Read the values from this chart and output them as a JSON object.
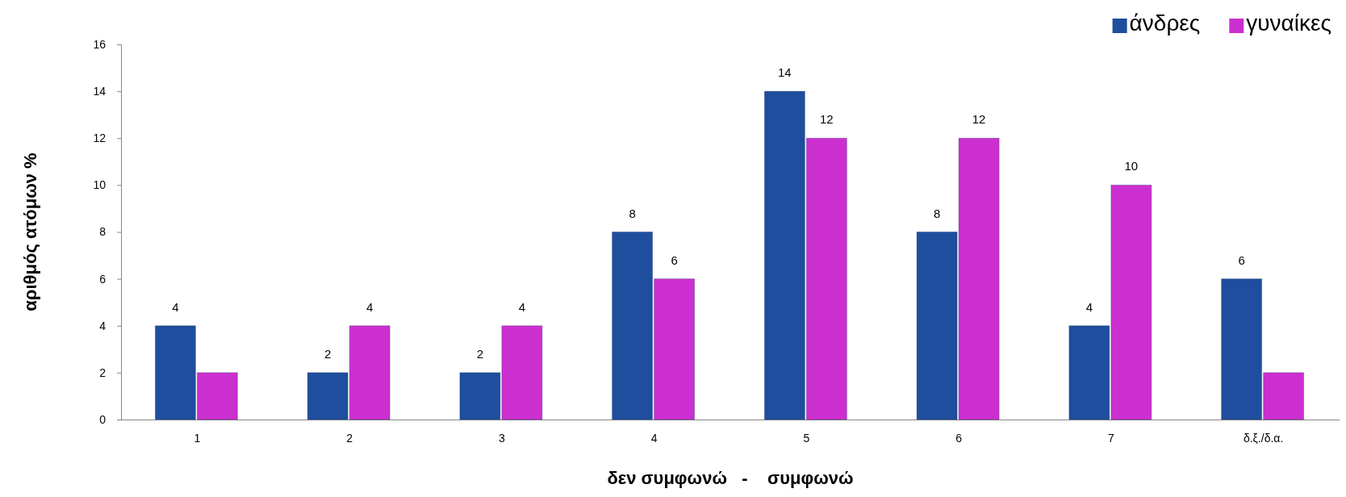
{
  "chart_data": {
    "type": "bar",
    "xlabel": "δεν συμφωνώ   -    συμφωνώ",
    "ylabel": "αριθμός ατόμων %",
    "categories": [
      "1",
      "2",
      "3",
      "4",
      "5",
      "6",
      "7",
      "δ.ξ./δ.α."
    ],
    "series": [
      {
        "name": "άνδρες",
        "color": "#1f4e9e",
        "values": [
          4,
          2,
          2,
          8,
          14,
          8,
          4,
          6
        ],
        "value_labels": [
          "4",
          "2",
          "2",
          "8",
          "14",
          "8",
          "4",
          "6"
        ]
      },
      {
        "name": "γυναίκες",
        "color": "#cc2fd0",
        "values": [
          2,
          4,
          4,
          6,
          12,
          12,
          10,
          2
        ],
        "value_labels": [
          null,
          "4",
          "4",
          "6",
          "12",
          "12",
          "10",
          null
        ]
      }
    ],
    "ylim": [
      0,
      16
    ],
    "yticks": [
      0,
      2,
      4,
      6,
      8,
      10,
      12,
      14,
      16
    ],
    "legend": "top right"
  }
}
